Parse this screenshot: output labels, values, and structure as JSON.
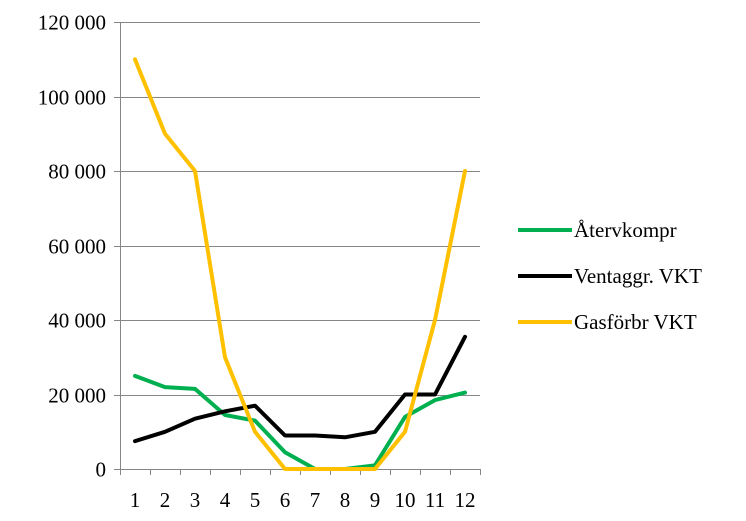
{
  "chart_data": {
    "type": "line",
    "title": "",
    "xlabel": "",
    "ylabel": "",
    "categories": [
      "1",
      "2",
      "3",
      "4",
      "5",
      "6",
      "7",
      "8",
      "9",
      "10",
      "11",
      "12"
    ],
    "ylim": [
      0,
      120000
    ],
    "yticks": [
      0,
      20000,
      40000,
      60000,
      80000,
      100000,
      120000
    ],
    "ytick_labels": [
      "0",
      "20 000",
      "40 000",
      "60 000",
      "80 000",
      "100 000",
      "120 000"
    ],
    "grid": "horizontal",
    "legend_position": "right",
    "series": [
      {
        "name": "Återvkompr",
        "color": "#00B050",
        "values": [
          25000,
          22000,
          21500,
          14500,
          13000,
          4500,
          0,
          0,
          1000,
          14000,
          18500,
          20500
        ]
      },
      {
        "name": "Ventaggr. VKT",
        "color": "#000000",
        "values": [
          7500,
          10000,
          13500,
          15500,
          17000,
          9000,
          9000,
          8500,
          10000,
          20000,
          20000,
          35500
        ]
      },
      {
        "name": "Gasförbr VKT",
        "color": "#FFC000",
        "values": [
          110000,
          90000,
          80000,
          30000,
          10000,
          0,
          0,
          0,
          0,
          10000,
          40000,
          80000
        ]
      }
    ]
  }
}
